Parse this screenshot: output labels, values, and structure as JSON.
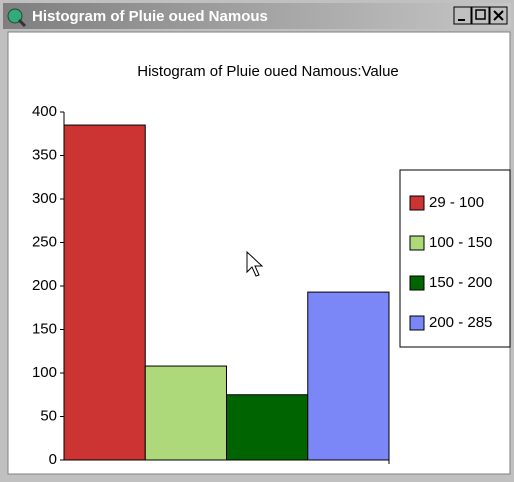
{
  "window": {
    "title": "Histogram of Pluie oued Namous"
  },
  "chart_data": {
    "type": "bar",
    "title": "Histogram of Pluie oued Namous:Value",
    "categories": [
      "29 - 100",
      "100 - 150",
      "150 - 200",
      "200 - 285"
    ],
    "values": [
      385,
      108,
      75,
      193
    ],
    "colors": [
      "#cc3333",
      "#aed97a",
      "#006400",
      "#7b86f7"
    ],
    "ylim": [
      0,
      400
    ],
    "yticks": [
      0,
      50,
      100,
      150,
      200,
      250,
      300,
      350,
      400
    ],
    "legend": "right"
  }
}
